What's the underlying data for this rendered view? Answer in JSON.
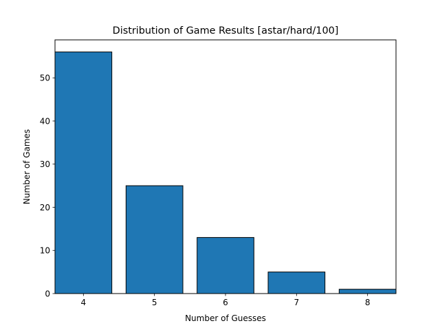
{
  "chart_data": {
    "type": "bar",
    "title": "Distribution of Game Results [astar/hard/100]",
    "xlabel": "Number of Guesses",
    "ylabel": "Number of Games",
    "categories": [
      "4",
      "5",
      "6",
      "7",
      "8"
    ],
    "values": [
      56,
      25,
      13,
      5,
      1
    ],
    "x_values": [
      4,
      5,
      6,
      7,
      8
    ],
    "xlim": [
      3.6,
      8.4
    ],
    "ylim": [
      0,
      58.8
    ],
    "yticks": [
      0,
      10,
      20,
      30,
      40,
      50
    ],
    "grid": false,
    "legend": "none",
    "colors": {
      "bar_fill": "#1f77b4",
      "bar_edge": "#000000",
      "axes": "#000000",
      "background": "#ffffff"
    }
  }
}
